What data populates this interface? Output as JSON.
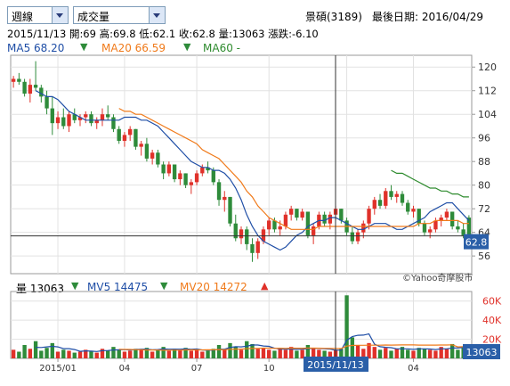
{
  "controls": {
    "period_select": "週線",
    "indicator_select": "成交量"
  },
  "header": {
    "stock": "景碩(3189)",
    "last_date_label": "最後日期: 2016/04/29",
    "info_line": "2015/11/13  開:69  高:69.8  低:62.1  收:62.8  量:13063  漲跌:-6.10"
  },
  "price_legend": {
    "ma5_label": "MA5 68.20",
    "ma20_label": "MA20 66.59",
    "ma60_label": "MA60 -",
    "ma5_color": "#1f4ea6",
    "ma20_color": "#f07a1a",
    "ma60_color": "#2e8b2e"
  },
  "volume_legend": {
    "vol_label": "量 13063",
    "mv5_label": "MV5 14475",
    "mv20_label": "MV20 14272"
  },
  "cursor": {
    "date_label": "2015/11/13",
    "price_tag": "62.8",
    "volume_tag": "13063"
  },
  "copyright": "©Yahoo奇摩股市",
  "colors": {
    "up": "#e0312a",
    "down": "#2e8b3a",
    "tag_bg": "#2a5fa8",
    "ma5": "#1f4ea6",
    "ma20": "#f07a1a",
    "ma60": "#2e8b2e",
    "grid": "#e2e2e2"
  },
  "chart_data": [
    {
      "type": "candlestick",
      "title": "",
      "y_ticks": [
        "120",
        "112",
        "104",
        "96",
        "88",
        "80",
        "72",
        "64",
        "56"
      ],
      "ylim": [
        50,
        124
      ],
      "x_ticks": [
        "2015/01",
        "04",
        "07",
        "10",
        "2016/01",
        "04"
      ],
      "last_close": 62.8,
      "series": [
        {
          "name": "MA5",
          "values": [
            null,
            null,
            null,
            null,
            112,
            111,
            110,
            110,
            109,
            107,
            105,
            104,
            103,
            102,
            102,
            102,
            102,
            102,
            102,
            102,
            103,
            103,
            103,
            102,
            102,
            101,
            100,
            98,
            96,
            94,
            92,
            90,
            88,
            87,
            86,
            86,
            85,
            85,
            84,
            82,
            79,
            75,
            70,
            66,
            63,
            61,
            60,
            59,
            58,
            59,
            61,
            63,
            64,
            66,
            67,
            68,
            68,
            69,
            69,
            68,
            67,
            66,
            65,
            65,
            66,
            67,
            67,
            67,
            66,
            65,
            65,
            66,
            67,
            68,
            69,
            71,
            72,
            73,
            74,
            74,
            72,
            70,
            68
          ]
        },
        {
          "name": "MA20",
          "values": [
            null,
            null,
            null,
            null,
            null,
            null,
            null,
            null,
            null,
            null,
            null,
            null,
            null,
            null,
            null,
            null,
            null,
            null,
            null,
            106,
            105,
            105,
            104,
            104,
            103,
            102,
            101,
            100,
            99,
            98,
            97,
            96,
            95,
            94,
            92,
            91,
            90,
            89,
            87,
            85,
            83,
            81,
            78,
            76,
            73,
            71,
            69,
            68,
            67,
            66,
            65,
            65,
            65,
            65,
            65,
            66,
            66,
            66,
            66,
            66,
            66,
            66,
            66,
            66,
            66,
            66,
            66,
            66,
            66,
            66,
            66,
            66,
            66,
            67,
            67,
            67,
            68,
            68,
            68,
            68,
            68,
            67,
            67
          ]
        },
        {
          "name": "MA60",
          "values": [
            null,
            null,
            null,
            null,
            null,
            null,
            null,
            null,
            null,
            null,
            null,
            null,
            null,
            null,
            null,
            null,
            null,
            null,
            null,
            null,
            null,
            null,
            null,
            null,
            null,
            null,
            null,
            null,
            null,
            null,
            null,
            null,
            null,
            null,
            null,
            null,
            null,
            null,
            null,
            null,
            null,
            null,
            null,
            null,
            null,
            null,
            null,
            null,
            null,
            null,
            null,
            null,
            null,
            null,
            null,
            null,
            null,
            null,
            null,
            null,
            null,
            null,
            null,
            null,
            null,
            null,
            null,
            null,
            85,
            84,
            84,
            83,
            82,
            81,
            80,
            79,
            79,
            78,
            78,
            77,
            77,
            76,
            76
          ]
        }
      ],
      "candles": [
        [
          115,
          117,
          113,
          116
        ],
        [
          116,
          118,
          114,
          115
        ],
        [
          115,
          116,
          110,
          111
        ],
        [
          111,
          116,
          108,
          114
        ],
        [
          114,
          122,
          112,
          113
        ],
        [
          113,
          114,
          108,
          110
        ],
        [
          110,
          112,
          104,
          106
        ],
        [
          106,
          110,
          97,
          101
        ],
        [
          101,
          105,
          99,
          103
        ],
        [
          103,
          106,
          99,
          100
        ],
        [
          100,
          105,
          98,
          104
        ],
        [
          104,
          106,
          101,
          102
        ],
        [
          102,
          104,
          100,
          103
        ],
        [
          103,
          105,
          101,
          104
        ],
        [
          104,
          105,
          100,
          101
        ],
        [
          101,
          103,
          99,
          102
        ],
        [
          102,
          106,
          100,
          104
        ],
        [
          104,
          107,
          102,
          103
        ],
        [
          103,
          104,
          98,
          99
        ],
        [
          99,
          100,
          94,
          95
        ],
        [
          95,
          98,
          93,
          97
        ],
        [
          97,
          100,
          95,
          99
        ],
        [
          99,
          99,
          92,
          93
        ],
        [
          93,
          95,
          90,
          94
        ],
        [
          94,
          96,
          88,
          89
        ],
        [
          89,
          92,
          87,
          91
        ],
        [
          91,
          92,
          86,
          87
        ],
        [
          87,
          88,
          82,
          84
        ],
        [
          84,
          88,
          83,
          87
        ],
        [
          87,
          87,
          81,
          82
        ],
        [
          82,
          85,
          80,
          84
        ],
        [
          84,
          84,
          79,
          80
        ],
        [
          80,
          82,
          77,
          81
        ],
        [
          81,
          85,
          80,
          84
        ],
        [
          84,
          87,
          83,
          86
        ],
        [
          86,
          88,
          84,
          85
        ],
        [
          85,
          86,
          80,
          81
        ],
        [
          81,
          82,
          73,
          75
        ],
        [
          75,
          78,
          71,
          76
        ],
        [
          76,
          76,
          66,
          67
        ],
        [
          67,
          70,
          61,
          62
        ],
        [
          62,
          66,
          60,
          65
        ],
        [
          65,
          66,
          58,
          60
        ],
        [
          60,
          62,
          54,
          57
        ],
        [
          57,
          62,
          55,
          61
        ],
        [
          61,
          66,
          60,
          65
        ],
        [
          65,
          69,
          63,
          68
        ],
        [
          68,
          69,
          64,
          65
        ],
        [
          65,
          68,
          63,
          66
        ],
        [
          66,
          71,
          65,
          70
        ],
        [
          70,
          73,
          68,
          72
        ],
        [
          72,
          72,
          68,
          69
        ],
        [
          69,
          72,
          68,
          71
        ],
        [
          71,
          71,
          62,
          63
        ],
        [
          63,
          67,
          60,
          66
        ],
        [
          66,
          71,
          65,
          70
        ],
        [
          70,
          71,
          66,
          67
        ],
        [
          67,
          71,
          65,
          70
        ],
        [
          70,
          73,
          68,
          72
        ],
        [
          72,
          72,
          67,
          68
        ],
        [
          68,
          69,
          63,
          64
        ],
        [
          64,
          66,
          60,
          61
        ],
        [
          61,
          65,
          60,
          64
        ],
        [
          64,
          68,
          62,
          67
        ],
        [
          67,
          73,
          65,
          72
        ],
        [
          72,
          76,
          70,
          75
        ],
        [
          75,
          77,
          72,
          73
        ],
        [
          73,
          79,
          72,
          78
        ],
        [
          78,
          80,
          75,
          76
        ],
        [
          76,
          78,
          74,
          77
        ],
        [
          77,
          78,
          73,
          74
        ],
        [
          74,
          75,
          70,
          71
        ],
        [
          71,
          73,
          69,
          72
        ],
        [
          72,
          72,
          66,
          67
        ],
        [
          67,
          68,
          63,
          64
        ],
        [
          64,
          66,
          62,
          65
        ],
        [
          65,
          69,
          64,
          68
        ],
        [
          68,
          70,
          66,
          69
        ],
        [
          69,
          72,
          68,
          71
        ],
        [
          71,
          71,
          65,
          66
        ],
        [
          66,
          68,
          64,
          65
        ],
        [
          65,
          67,
          62,
          63
        ],
        [
          69,
          69.8,
          62.1,
          62.8
        ]
      ]
    },
    {
      "type": "bar",
      "title": "",
      "y_ticks": [
        "60K",
        "40K",
        "20K"
      ],
      "ylim": [
        0,
        70000
      ],
      "series": [
        {
          "name": "量",
          "values": [
            9000,
            7000,
            14000,
            10000,
            18000,
            8000,
            11000,
            16000,
            7000,
            9000,
            8000,
            6000,
            7000,
            9000,
            8000,
            6000,
            10000,
            8000,
            12000,
            9000,
            7000,
            8000,
            10000,
            9000,
            11000,
            7000,
            9000,
            12000,
            8000,
            10000,
            9000,
            11000,
            8000,
            9000,
            7000,
            8000,
            10000,
            14000,
            9000,
            16000,
            12000,
            9000,
            18000,
            15000,
            10000,
            11000,
            9000,
            8000,
            10000,
            9000,
            12000,
            8000,
            9000,
            14000,
            10000,
            9000,
            8000,
            7000,
            9000,
            10000,
            66000,
            22000,
            14000,
            10000,
            16000,
            12000,
            9000,
            11000,
            8000,
            10000,
            12000,
            9000,
            8000,
            11000,
            10000,
            9000,
            8000,
            12000,
            10000,
            15000,
            9000,
            11000,
            13063
          ]
        },
        {
          "name": "MV5",
          "values": [
            null,
            null,
            null,
            null,
            11600,
            11400,
            12000,
            12600,
            12000,
            10200,
            10200,
            9200,
            7400,
            7800,
            7600,
            7200,
            8000,
            8200,
            8800,
            9000,
            9200,
            8800,
            9200,
            9600,
            9600,
            9000,
            9200,
            9800,
            9600,
            9600,
            9600,
            10000,
            9400,
            9800,
            8800,
            8600,
            8600,
            9600,
            9600,
            11400,
            12200,
            12000,
            12800,
            14000,
            14000,
            13000,
            12600,
            10600,
            9600,
            9600,
            9600,
            9400,
            9600,
            10200,
            10600,
            10400,
            10000,
            9600,
            8600,
            8600,
            19000,
            22800,
            24200,
            24400,
            25600,
            14800,
            12200,
            11600,
            11200,
            10000,
            10000,
            10000,
            9400,
            10000,
            10000,
            9800,
            9200,
            10000,
            10000,
            10800,
            10800,
            11400,
            14475
          ]
        },
        {
          "name": "MV20",
          "values": [
            null,
            null,
            null,
            null,
            null,
            null,
            null,
            null,
            null,
            null,
            null,
            null,
            null,
            null,
            null,
            null,
            null,
            null,
            null,
            9500,
            9300,
            9300,
            9100,
            9100,
            8800,
            8800,
            8700,
            8500,
            8600,
            8600,
            8600,
            8900,
            8900,
            8900,
            8900,
            9000,
            9000,
            9200,
            9100,
            9500,
            9700,
            9700,
            10100,
            10400,
            10500,
            10700,
            10700,
            10500,
            10600,
            10500,
            10700,
            10600,
            10600,
            10700,
            10700,
            10600,
            10500,
            10400,
            10300,
            10300,
            12900,
            13500,
            13700,
            13700,
            13800,
            13800,
            13800,
            14000,
            13900,
            14000,
            14100,
            14200,
            14100,
            13900,
            13900,
            13900,
            13900,
            14000,
            14000,
            14200,
            12000,
            12200,
            14272
          ]
        }
      ]
    }
  ]
}
